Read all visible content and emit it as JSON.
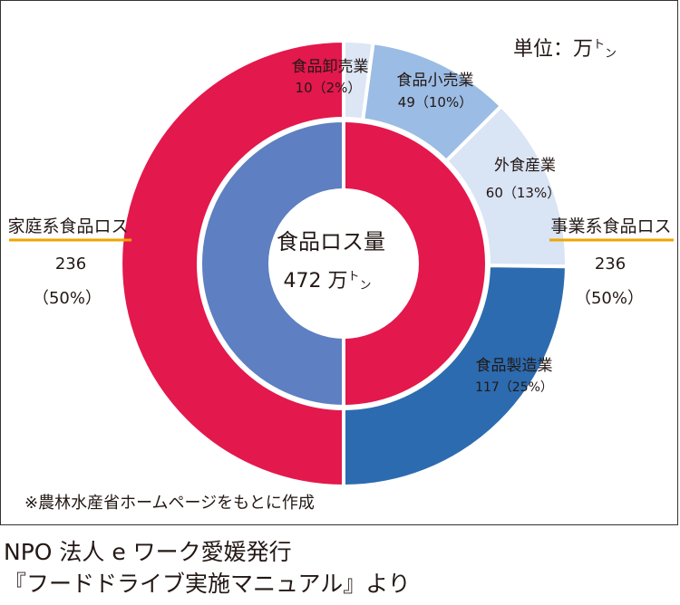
{
  "chart_data": {
    "type": "pie",
    "subtype": "donut",
    "center_label": "食品ロス量",
    "center_value": "472 万",
    "center_unit_sup": "ト",
    "center_unit_sub": "ン",
    "unit_label": "単位：万",
    "unit_sup": "ト",
    "unit_sub": "ン",
    "inner_ring": [
      {
        "name": "家庭系食品ロス",
        "value": 236,
        "percent_label": "（50%）",
        "color": "#E3184D"
      },
      {
        "name": "事業系食品ロス",
        "value": 236,
        "percent_label": "（50%）",
        "color": "#5E7FC1"
      }
    ],
    "outer_ring": [
      {
        "name": "食品卸売業",
        "value": 10,
        "label": "10（2%）",
        "color": "#DCE6F4"
      },
      {
        "name": "食品小売業",
        "value": 49,
        "label": "49（10%）",
        "color": "#9BBCE4"
      },
      {
        "name": "外食産業",
        "value": 60,
        "label": "60（13%）",
        "color": "#D9E4F5"
      },
      {
        "name": "食品製造業",
        "value": 117,
        "label": "117（25%）",
        "color": "#2C6BAF"
      },
      {
        "name": "家庭系食品ロス",
        "value": 236,
        "label": "",
        "color": "#E3184D"
      }
    ],
    "left_label": {
      "name": "家庭系食品ロス",
      "value": "236",
      "percent": "（50%）"
    },
    "right_label": {
      "name": "事業系食品ロス",
      "value": "236",
      "percent": "（50%）"
    },
    "accent_line_color": "#F0A500"
  },
  "source_note": "※農林水産省ホームページをもとに作成",
  "caption": {
    "line1": "NPO 法人 e ワーク愛媛発行",
    "line2": "『フードドライブ実施マニュアル』より"
  }
}
